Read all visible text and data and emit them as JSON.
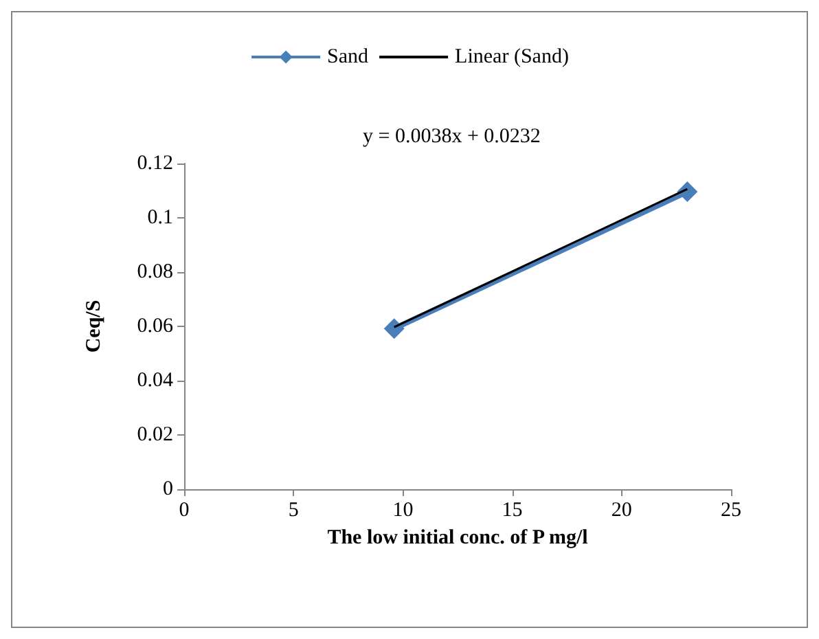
{
  "chart_data": {
    "type": "line",
    "xlabel": "The low initial conc. of P mg/l",
    "ylabel": "Ceq/S",
    "annotations": [
      "y = 0.0038x + 0.0232"
    ],
    "series": [
      {
        "name": "Sand",
        "color": "#4a7ebb",
        "marker": "diamond",
        "values": [
          0.0592,
          0.1096
        ]
      },
      {
        "name": "Linear (Sand)",
        "color": "#000000",
        "marker": "none",
        "x": [
          9.6,
          23
        ],
        "values": [
          0.0597,
          0.1106
        ]
      }
    ],
    "x": [
      9.6,
      23
    ],
    "xlim": [
      0,
      25
    ],
    "xticks": [
      0,
      5,
      10,
      15,
      20,
      25
    ],
    "ylim": [
      0,
      0.12
    ],
    "yticks": [
      0,
      0.02,
      0.04,
      0.06,
      0.08,
      0.1,
      0.12
    ],
    "grid": false,
    "legend": "top"
  }
}
